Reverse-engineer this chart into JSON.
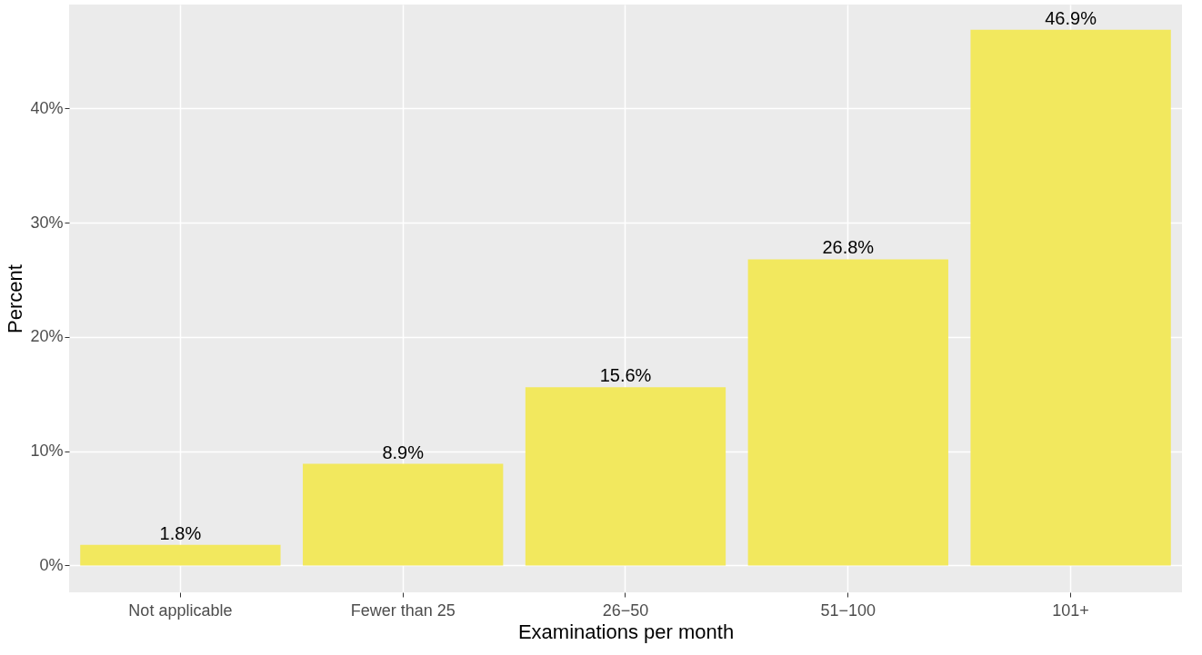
{
  "chart_data": {
    "type": "bar",
    "xlabel": "Examinations per month",
    "ylabel": "Percent",
    "categories": [
      "Not applicable",
      "Fewer than 25",
      "26−50",
      "51−100",
      "101+"
    ],
    "values": [
      1.8,
      8.9,
      15.6,
      26.8,
      46.9
    ],
    "value_labels": [
      "1.8%",
      "8.9%",
      "15.6%",
      "26.8%",
      "46.9%"
    ],
    "color": "#f2e85e",
    "ylim": [
      -2.35,
      49.1
    ],
    "yticks": [
      {
        "value": 0,
        "label": "0%"
      },
      {
        "value": 10,
        "label": "10%"
      },
      {
        "value": 20,
        "label": "20%"
      },
      {
        "value": 30,
        "label": "30%"
      },
      {
        "value": 40,
        "label": "40%"
      }
    ],
    "grid": true
  }
}
